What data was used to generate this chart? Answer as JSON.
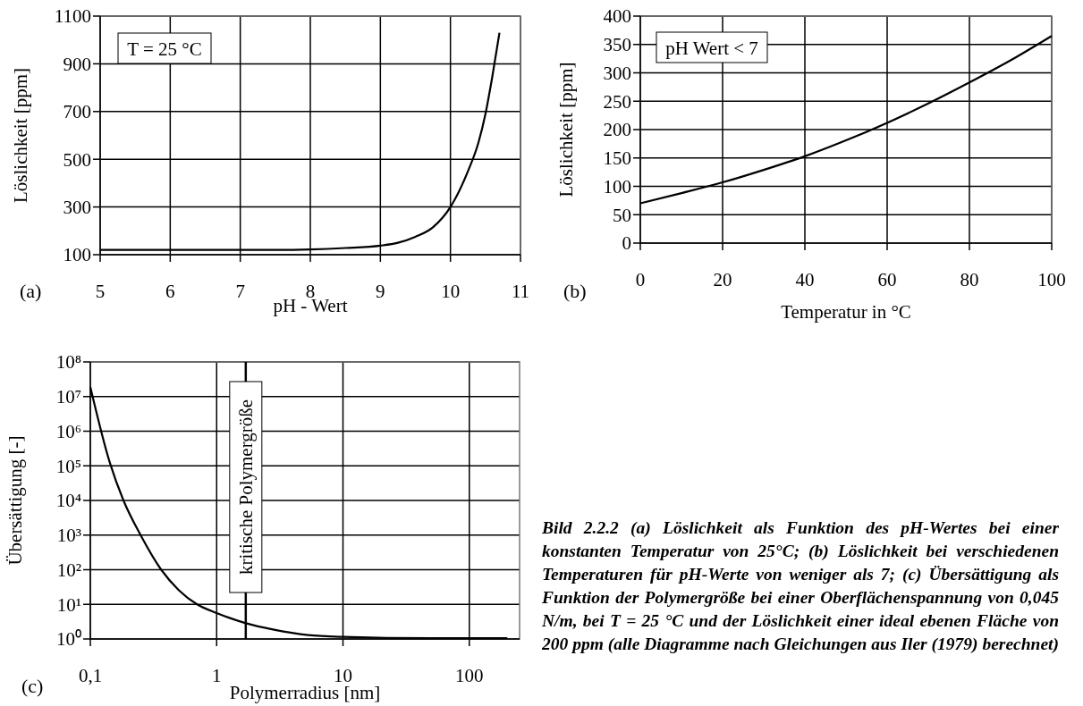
{
  "chart_data": [
    {
      "type": "line",
      "xlabel": "pH - Wert",
      "ylabel": "Löslichkeit [ppm]",
      "annotations": [
        "(a)",
        "T = 25 °C"
      ],
      "xlim": [
        5,
        11
      ],
      "ylim": [
        100,
        1100
      ],
      "xticks": [
        5,
        6,
        7,
        8,
        9,
        10,
        11
      ],
      "yticks": [
        100,
        300,
        500,
        700,
        900,
        1100
      ],
      "grid": true,
      "series": [
        {
          "color": "#000000",
          "x": [
            5,
            6,
            7,
            7.5,
            8,
            8.5,
            9,
            9.25,
            9.5,
            9.75,
            10,
            10.25,
            10.4,
            10.5,
            10.6,
            10.7
          ],
          "values": [
            120,
            120,
            120,
            120,
            122,
            128,
            138,
            150,
            175,
            215,
            300,
            450,
            570,
            690,
            850,
            1030
          ]
        }
      ]
    },
    {
      "type": "line",
      "xlabel": "Temperatur in °C",
      "ylabel": "Löslichkeit [ppm]",
      "annotations": [
        "(b)",
        "pH Wert < 7"
      ],
      "xlim": [
        0,
        100
      ],
      "ylim": [
        0,
        400
      ],
      "xticks": [
        0,
        20,
        40,
        60,
        80,
        100
      ],
      "yticks": [
        0,
        50,
        100,
        150,
        200,
        250,
        300,
        350,
        400
      ],
      "grid": true,
      "series": [
        {
          "color": "#000000",
          "x": [
            0,
            10,
            20,
            30,
            40,
            50,
            60,
            70,
            80,
            90,
            100
          ],
          "values": [
            70,
            88,
            107,
            129,
            153,
            181,
            212,
            246,
            283,
            322,
            365
          ]
        }
      ]
    },
    {
      "type": "line",
      "xlabel": "Polymerradius [nm]",
      "ylabel": "Übersättigung [-]",
      "annotations": [
        "(c)"
      ],
      "log": "xy",
      "xlim": [
        0.1,
        250
      ],
      "ylim": [
        1,
        100000000
      ],
      "xticks": [
        {
          "value": 0.1,
          "label": "0,1"
        },
        1,
        10,
        100
      ],
      "yticks": [
        {
          "value": 1,
          "label": "10⁰"
        },
        {
          "value": 10,
          "label": "10¹"
        },
        {
          "value": 100,
          "label": "10²"
        },
        {
          "value": 1000,
          "label": "10³"
        },
        {
          "value": 10000,
          "label": "10⁴"
        },
        {
          "value": 100000,
          "label": "10⁵"
        },
        {
          "value": 1000000,
          "label": "10⁶"
        },
        {
          "value": 10000000,
          "label": "10⁷"
        },
        {
          "value": 100000000,
          "label": "10⁸"
        }
      ],
      "grid": true,
      "ref_lines": [
        {
          "axis": "x",
          "value": 1.7,
          "label": "kritische Polymergröße",
          "color": "#000000"
        }
      ],
      "series": [
        {
          "color": "#000000",
          "x": [
            0.1,
            0.143,
            0.183,
            0.25,
            0.364,
            0.5,
            0.7,
            1,
            1.68,
            2.85,
            5.3,
            10,
            50,
            200
          ],
          "values": [
            19000000,
            120000,
            10000,
            1000,
            100,
            26,
            10,
            5.6,
            2.9,
            1.85,
            1.3,
            1.15,
            1.05,
            1.05
          ]
        }
      ]
    },
    {
      "type": "other",
      "annotations": [
        "Bild 2.2.2 (a) Löslichkeit als Funktion des pH-Wertes bei einer konstanten Temperatur von 25°C; (b) Löslichkeit bei verschiedenen Temperaturen für pH-Werte von weniger als 7; (c) Übersättigung als Funktion der Polymergröße bei einer Oberflächenspannung von 0,045 N/m, bei T = 25 °C und der Löslichkeit einer ideal ebenen Fläche von 200 ppm (alle Diagramme nach Gleichungen aus Iler (1979) berechnet)"
      ]
    }
  ]
}
